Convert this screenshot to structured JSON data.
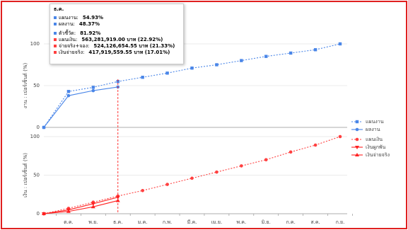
{
  "chart_data": [
    {
      "type": "line",
      "y_label": "งาน : เปอร์เซ็นต์ (%)",
      "ylim": [
        0,
        100
      ],
      "yticks": [
        0,
        50,
        100
      ],
      "grid": true,
      "series": [
        {
          "name": "แผนงาน",
          "color": "#4a86e8",
          "style": "dotted",
          "marker": "square",
          "values": [
            0,
            43,
            48,
            54.93,
            60,
            65,
            71,
            75,
            80,
            85,
            89,
            93,
            100
          ]
        },
        {
          "name": "ผลงาน",
          "color": "#4a86e8",
          "style": "solid",
          "marker": "circle",
          "values": [
            0,
            38,
            44,
            48.37,
            null,
            null,
            null,
            null,
            null,
            null,
            null,
            null,
            null
          ]
        }
      ]
    },
    {
      "type": "line",
      "y_label": "เงิน : เปอร์เซ็นต์ (%)",
      "ylim": [
        0,
        100
      ],
      "yticks": [
        0,
        50,
        100
      ],
      "grid": true,
      "categories": [
        null,
        "ต.ค.",
        "พ.ย.",
        "ธ.ค.",
        "ม.ค.",
        "ก.พ.",
        "มี.ค.",
        "เม.ย.",
        "พ.ค.",
        "มิ.ย.",
        "ก.ค.",
        "ส.ค.",
        "ก.ย."
      ],
      "series": [
        {
          "name": "แผนเงิน",
          "color": "#ff4040",
          "style": "dotted",
          "marker": "circle",
          "values": [
            0,
            7,
            15,
            22.92,
            30,
            38,
            46,
            54,
            62,
            70,
            80,
            89,
            100
          ]
        },
        {
          "name": "เงินผูกพัน",
          "color": "#ff2020",
          "style": "solid",
          "marker": "triangle-down",
          "values": [
            0,
            5,
            13,
            21.33,
            null,
            null,
            null,
            null,
            null,
            null,
            null,
            null,
            null
          ]
        },
        {
          "name": "เงินจ่ายจริง",
          "color": "#ff2020",
          "style": "solid",
          "marker": "triangle-up",
          "values": [
            0,
            3,
            9,
            17.01,
            null,
            null,
            null,
            null,
            null,
            null,
            null,
            null,
            null
          ]
        }
      ]
    }
  ],
  "tooltip": {
    "title": "ธ.ค.",
    "groups": [
      [
        {
          "label": "แผนงาน:",
          "value": "54.93%",
          "color": "#4a86e8"
        },
        {
          "label": "ผลงาน:",
          "value": "48.37%",
          "color": "#4a86e8"
        }
      ],
      [
        {
          "label": "ตัวชี้วัด:",
          "value": "81.92%",
          "color": "#4a86e8"
        },
        {
          "label": "แผนเงิน:",
          "value": "563,281,919.00 บาท (22.92%)",
          "color": "#ff4040"
        },
        {
          "label": "จ่ายจริง+จอง:",
          "value": "524,126,654.55 บาท (21.33%)",
          "color": "#ff4040"
        },
        {
          "label": "เงินจ่ายจริง:",
          "value": "417,919,559.55 บาท (17.01%)",
          "color": "#ff4040"
        }
      ]
    ]
  }
}
